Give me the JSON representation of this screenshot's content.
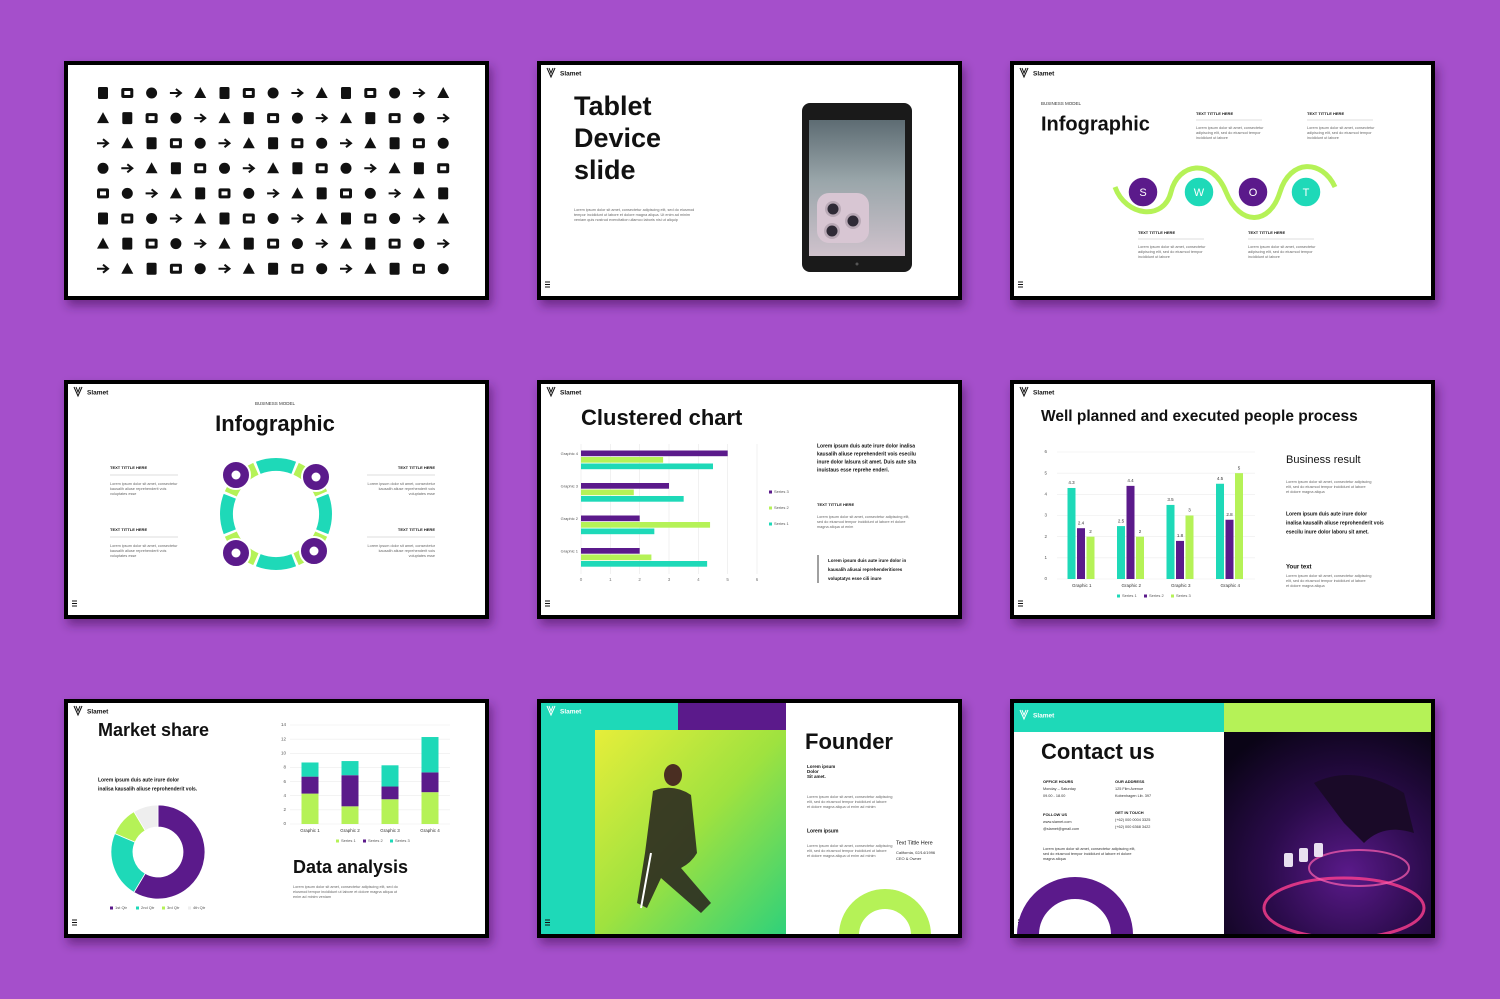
{
  "brand": "Slamet",
  "tablet_slide": {
    "title": [
      "Tablet",
      "Device",
      "slide"
    ],
    "body": [
      "Lorem ipsum dolor sit amet, consectetur adipiscing elit, sed do eiusmod",
      "tempor incididunt ut labore et dolore magna aliqua. Ut enim ad minim",
      "veniam quis nostrud exercitation ullamco laboris nisi ut aliquip"
    ]
  },
  "swot_slide": {
    "kicker": "BUSINESS MODEL",
    "title": "Infographic",
    "letters": [
      "S",
      "W",
      "O",
      "T"
    ],
    "blocks": [
      {
        "heading": "TEXT TITTLE HERE",
        "text": [
          "Lorem ipsum dolor sit amet, consectetur",
          "adipiscing elit, sed do eiusmod tempor",
          "incididunt ut labore"
        ]
      },
      {
        "heading": "TEXT TITTLE HERE",
        "text": [
          "Lorem ipsum dolor sit amet, consectetur",
          "adipiscing elit, sed do eiusmod tempor",
          "incididunt ut labore"
        ]
      },
      {
        "heading": "TEXT TITTLE HERE",
        "text": [
          "Lorem ipsum dolor sit amet, consectetur",
          "adipiscing elit, sed do eiusmod tempor",
          "incididunt ut labore"
        ]
      },
      {
        "heading": "TEXT TITTLE HERE",
        "text": [
          "Lorem ipsum dolor sit amet, consectetur",
          "adipiscing elit, sed do eiusmod tempor",
          "incididunt ut labore"
        ]
      }
    ]
  },
  "cycle_slide": {
    "kicker": "BUSINESS MODEL",
    "title": "Infographic",
    "blocks": [
      {
        "heading": "TEXT TITTLE HERE",
        "text": [
          "Lorem ipsum dolor sit amet, consectetur",
          "kausalih aliuse reprehenderit vois",
          "voluptates esse"
        ]
      },
      {
        "heading": "TEXT TITTLE HERE",
        "text": [
          "Lorem ipsum dolor sit amet, consectetur",
          "kausalih aliuse reprehenderit vois",
          "voluptates esse"
        ]
      },
      {
        "heading": "TEXT TITTLE HERE",
        "text": [
          "Lorem ipsum dolor sit amet, consectetur",
          "kausalih aliuse reprehenderit vois",
          "voluptates esse"
        ]
      },
      {
        "heading": "TEXT TITTLE HERE",
        "text": [
          "Lorem ipsum dolor sit amet, consectetur",
          "kausalih aliuse reprehenderit vois",
          "voluptates esse"
        ]
      }
    ]
  },
  "clustered_slide": {
    "title": "Clustered chart",
    "chart": {
      "type": "bar",
      "orientation": "horizontal",
      "categories": [
        "Graphic 1",
        "Graphic 2",
        "Graphic 3",
        "Graphic 4"
      ],
      "series": [
        {
          "name": "Series 1",
          "color": "#1ed9b8",
          "values": [
            4.3,
            2.5,
            3.5,
            4.5
          ]
        },
        {
          "name": "Series 2",
          "color": "#b5f257",
          "values": [
            2.4,
            4.4,
            1.8,
            2.8
          ]
        },
        {
          "name": "Series 3",
          "color": "#5b1a8b",
          "values": [
            2,
            2,
            3,
            5
          ]
        }
      ],
      "xlim": [
        0,
        6
      ],
      "xticks": [
        0,
        1,
        2,
        3,
        4,
        5,
        6
      ],
      "grid": true
    },
    "lead": [
      "Lorem ipsum duis aute irure dolor inalisa",
      "kausalih aliuse reprehenderit vois esecilu",
      "inure dolor lalsura sit amet. Duis aute sita",
      "inuistaus esse reprehe enderi."
    ],
    "heading": "TEXT TITTLE HERE",
    "text": [
      "Lorem ipsum dolor sit amet, consectetur adipiscing elit,",
      "sed do eiusmod tempor incididunt ut labore et dolore",
      "magna aliqua ut enim"
    ],
    "quote": [
      "Lorem ipsum duis aute irure dolor in",
      "kausalih aliusai reprehenderitiores",
      "voluptatys esse cili inure"
    ]
  },
  "process_slide": {
    "title": "Well planned and executed people process",
    "chart": {
      "type": "bar",
      "categories": [
        "Graphic 1",
        "Graphic 2",
        "Graphic 3",
        "Graphic 4"
      ],
      "series": [
        {
          "name": "Series 1",
          "color": "#1ed9b8",
          "values": [
            4.3,
            2.5,
            3.5,
            4.5
          ]
        },
        {
          "name": "Series 2",
          "color": "#5b1a8b",
          "values": [
            2.4,
            4.4,
            1.8,
            2.8
          ]
        },
        {
          "name": "Series 3",
          "color": "#b5f257",
          "values": [
            2,
            2,
            3,
            5
          ]
        }
      ],
      "ylim": [
        0,
        6
      ],
      "yticks": [
        0,
        1,
        2,
        3,
        4,
        5,
        6
      ],
      "grid": true
    },
    "heading": "Business result",
    "text": [
      "Lorem ipsum dolor sit amet, consectetur adipiscing",
      "elit, sed do eiusmod tempor incididunt ut labore",
      "et dolore magna aliqua"
    ],
    "lead": [
      "Lorem ipsum duis aute irure dolor",
      "inalisa kausalih aliuse reprohenderit vois",
      "esecilu inure dolor laboru sit amet."
    ],
    "subheading": "Your text",
    "subtext": [
      "Lorem ipsum dolor sit amet, consectetur adipiscing",
      "elit, sed do eiusmod tempor incididunt ut labore",
      "et dolore magna aliqua"
    ]
  },
  "market_slide": {
    "title": "Market share",
    "lead": [
      "Lorem ipsum duis aute irure dolor",
      "inalisa kausalih aliuse reprohenderit vols."
    ],
    "donut": {
      "type": "doughnut",
      "categories": [
        "1st Qtr",
        "2nd Qtr",
        "3rd Qtr",
        "4th Qtr"
      ],
      "values": [
        8.2,
        3.2,
        1.4,
        1.2
      ],
      "colors": [
        "#5b1a8b",
        "#1ed9b8",
        "#b5f257",
        "#eeeeee"
      ]
    },
    "chart": {
      "type": "stacked_bar",
      "categories": [
        "Graphic 1",
        "Graphic 2",
        "Graphic 3",
        "Graphic 4"
      ],
      "series": [
        {
          "name": "Series 1",
          "color": "#b5f257",
          "values": [
            4.3,
            2.5,
            3.5,
            4.5
          ]
        },
        {
          "name": "Series 2",
          "color": "#5b1a8b",
          "values": [
            2.4,
            4.4,
            1.8,
            2.8
          ]
        },
        {
          "name": "Series 3",
          "color": "#1ed9b8",
          "values": [
            2,
            2,
            3,
            5
          ]
        }
      ],
      "ylim": [
        0,
        14
      ],
      "yticks": [
        0,
        2,
        4,
        6,
        8,
        10,
        12,
        14
      ],
      "grid": true
    },
    "subtitle": "Data analysis",
    "text": [
      "Lorem ipsum dolor sit amet, consectetur adipiscing elit, sed do",
      "eiusmod tempor incididunt ut labore et dolore magna aliqua ut",
      "enim ad minim veniam"
    ]
  },
  "founder_slide": {
    "title": "Founder",
    "tagline": [
      "Lorem ipsum",
      "Dolor",
      "Sit amet."
    ],
    "text": [
      "Lorem ipsum dolor sit amet, consectetur adipiscing",
      "elit, sed do eiusmod tempor incididunt ut labore",
      "et dolore magna aliqua ut enim ad minim"
    ],
    "heading": "Lorem ipsum",
    "text2": [
      "Lorem ipsum dolor sit amet, consectetur adipiscing",
      "elit, sed do eiusmod tempor incididunt ut labore",
      "et dolore magna aliqua ut enim ad minim"
    ],
    "name": "Text Tittle Here",
    "details": [
      "California, 02/14/1996",
      "CEO & Owner"
    ]
  },
  "contact_slide": {
    "title": "Contact us",
    "blocks": [
      {
        "heading": "OFFICE HOURS",
        "lines": [
          "Monday – Saturday",
          "09.00 - 18.00"
        ]
      },
      {
        "heading": "OUR ADDRESS",
        "lines": [
          "125 Film Avenue",
          "Kobenhagen Lib. 397"
        ]
      },
      {
        "heading": "FOLLOW US",
        "lines": [
          "www.slamet.com",
          "@slamet@gmail.com"
        ]
      },
      {
        "heading": "GET IN TOUCH",
        "lines": [
          "(+62) 000 0004 3325",
          "(+62) 000 6368 3422"
        ]
      }
    ],
    "text": [
      "Lorem ipsum dolor sit amet, consectetur adipiscing elit,",
      "sed do eiusmod tempor incididunt ut labore et dolore",
      "magna aliqua"
    ]
  }
}
